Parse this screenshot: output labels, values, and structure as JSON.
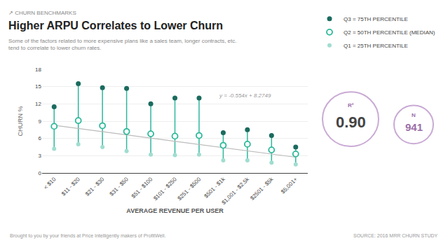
{
  "chart_data": {
    "type": "scatter",
    "title": "Higher ARPU Correlates to Lower Churn",
    "subtitle": "↗ CHURN BENCHMARKS",
    "description": "Some of the factors related to more expensive plans like a sales team, longer contracts, etc.\ntend to correlate to lower churn rates.",
    "xlabel": "AVERAGE REVENUE PER USER",
    "ylabel": "CHURN %",
    "categories": [
      "< $10",
      "$11 - $20",
      "$21 - $30",
      "$31 - $50",
      "$51 - $100",
      "$101 - $250",
      "$251 - $500",
      "$501 - $1k",
      "$1,001 - $2.5k",
      "$2501 - $5k",
      "$5,001+"
    ],
    "series": [
      {
        "name": "Q3 = 75TH PERCENTILE",
        "color": "#1a6b5e",
        "marker": "circle",
        "values": [
          11.5,
          15.5,
          14.8,
          14.7,
          12.0,
          13.0,
          13.0,
          7.0,
          7.5,
          6.5,
          4.5
        ]
      },
      {
        "name": "Q2 = 50TH PERCENTILE (MEDIAN)",
        "color": "#2db89a",
        "marker": "open circle",
        "values": [
          8.1,
          9.1,
          8.2,
          7.2,
          6.8,
          6.4,
          6.5,
          4.8,
          5.0,
          4.0,
          3.3
        ]
      },
      {
        "name": "Q1 = 25TH PERCENTILE",
        "color": "#a0ddd0",
        "marker": "circle",
        "values": [
          4.2,
          5.0,
          4.5,
          3.8,
          3.2,
          3.1,
          3.2,
          2.2,
          2.2,
          1.8,
          1.5
        ]
      }
    ],
    "trend": {
      "slope": -0.554,
      "intercept": 8.2749,
      "label": "y = -0.554x + 8.2749"
    },
    "stats": [
      {
        "label": "R²",
        "text": "0.90"
      },
      {
        "label": "N",
        "text": "941"
      }
    ],
    "footer_left": "Brought to you by your friends at Price Intelligently makers of ProfitWell.",
    "footer_right": "SOURCE: 2016 MRR CHURN STUDY",
    "ylim": [
      0,
      18
    ],
    "yticks": [
      0,
      3,
      6,
      9,
      12,
      15,
      18
    ],
    "grid": true,
    "legend": "upper right"
  }
}
